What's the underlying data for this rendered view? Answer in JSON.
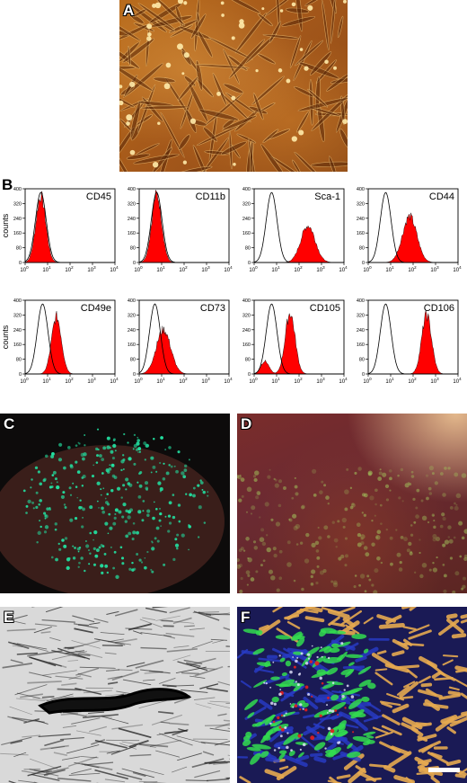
{
  "panels": {
    "a": {
      "letter": "A"
    },
    "b": {
      "letter": "B",
      "ylabel": "counts"
    },
    "c": {
      "letter": "C"
    },
    "d": {
      "letter": "D"
    },
    "e": {
      "letter": "E"
    },
    "f": {
      "letter": "F"
    }
  },
  "colors": {
    "filled_histogram": "#ff0000",
    "control_outline": "#000000",
    "culture_background": "#a3571a",
    "gfp_green": "#22e0a0"
  },
  "chart_data": [
    {
      "type": "area",
      "title": "CD45",
      "xlabel": "",
      "ylabel": "counts",
      "xscale": "log",
      "xlim": [
        1,
        10000
      ],
      "ylim": [
        0,
        400
      ],
      "y_ticks": [
        0,
        80,
        160,
        240,
        320,
        400
      ],
      "x_ticks": [
        "10^0",
        "10^1",
        "10^2",
        "10^3",
        "10^4"
      ],
      "series": [
        {
          "fill": "red",
          "peak_x": 5,
          "peak_y": 360
        },
        {
          "outline": "black",
          "peak_x": 5,
          "peak_y": 380
        }
      ]
    },
    {
      "type": "area",
      "title": "CD11b",
      "xlabel": "",
      "ylabel": "",
      "xscale": "log",
      "xlim": [
        1,
        10000
      ],
      "ylim": [
        0,
        400
      ],
      "y_ticks": [
        0,
        80,
        160,
        240,
        320,
        400
      ],
      "x_ticks": [
        "10^0",
        "10^1",
        "10^2",
        "10^3",
        "10^4"
      ],
      "series": [
        {
          "fill": "red",
          "peak_x": 6,
          "peak_y": 370
        },
        {
          "outline": "black",
          "peak_x": 6,
          "peak_y": 380
        }
      ]
    },
    {
      "type": "area",
      "title": "Sca-1",
      "xlabel": "",
      "ylabel": "",
      "xscale": "log",
      "xlim": [
        1,
        10000
      ],
      "ylim": [
        0,
        400
      ],
      "y_ticks": [
        0,
        80,
        160,
        240,
        320,
        400
      ],
      "x_ticks": [
        "10^0",
        "10^1",
        "10^2",
        "10^3",
        "10^4"
      ],
      "series": [
        {
          "fill": "red",
          "peak_x": 250,
          "peak_y": 200
        },
        {
          "outline": "black",
          "peak_x": 6,
          "peak_y": 380
        }
      ]
    },
    {
      "type": "area",
      "title": "CD44",
      "xlabel": "",
      "ylabel": "",
      "xscale": "log",
      "xlim": [
        1,
        10000
      ],
      "ylim": [
        0,
        400
      ],
      "y_ticks": [
        0,
        80,
        160,
        240,
        320,
        400
      ],
      "x_ticks": [
        "10^0",
        "10^1",
        "10^2",
        "10^3",
        "10^4"
      ],
      "series": [
        {
          "fill": "red",
          "peak_x": 70,
          "peak_y": 250
        },
        {
          "outline": "black",
          "peak_x": 6,
          "peak_y": 380
        }
      ]
    },
    {
      "type": "area",
      "title": "CD49e",
      "xlabel": "",
      "ylabel": "counts",
      "xscale": "log",
      "xlim": [
        1,
        10000
      ],
      "ylim": [
        0,
        400
      ],
      "y_ticks": [
        0,
        80,
        160,
        240,
        320,
        400
      ],
      "x_ticks": [
        "10^0",
        "10^1",
        "10^2",
        "10^3",
        "10^4"
      ],
      "series": [
        {
          "fill": "red",
          "peak_x": 25,
          "peak_y": 310
        },
        {
          "outline": "black",
          "peak_x": 6,
          "peak_y": 380
        }
      ]
    },
    {
      "type": "area",
      "title": "CD73",
      "xlabel": "",
      "ylabel": "",
      "xscale": "log",
      "xlim": [
        1,
        10000
      ],
      "ylim": [
        0,
        400
      ],
      "y_ticks": [
        0,
        80,
        160,
        240,
        320,
        400
      ],
      "x_ticks": [
        "10^0",
        "10^1",
        "10^2",
        "10^3",
        "10^4"
      ],
      "series": [
        {
          "fill": "red",
          "peak_x": 12,
          "peak_y": 240
        },
        {
          "outline": "black",
          "peak_x": 5,
          "peak_y": 380
        }
      ]
    },
    {
      "type": "area",
      "title": "CD105",
      "xlabel": "",
      "ylabel": "",
      "xscale": "log",
      "xlim": [
        1,
        10000
      ],
      "ylim": [
        0,
        400
      ],
      "y_ticks": [
        0,
        80,
        160,
        240,
        320,
        400
      ],
      "x_ticks": [
        "10^0",
        "10^1",
        "10^2",
        "10^3",
        "10^4"
      ],
      "series": [
        {
          "fill": "red",
          "peak_x": 40,
          "peak_y": 330,
          "shoulder_x": 3,
          "shoulder_y": 70
        },
        {
          "outline": "black",
          "peak_x": 6,
          "peak_y": 380
        }
      ]
    },
    {
      "type": "area",
      "title": "CD106",
      "xlabel": "",
      "ylabel": "",
      "xscale": "log",
      "xlim": [
        1,
        10000
      ],
      "ylim": [
        0,
        400
      ],
      "y_ticks": [
        0,
        80,
        160,
        240,
        320,
        400
      ],
      "x_ticks": [
        "10^0",
        "10^1",
        "10^2",
        "10^3",
        "10^4"
      ],
      "series": [
        {
          "fill": "red",
          "peak_x": 400,
          "peak_y": 320
        },
        {
          "outline": "black",
          "peak_x": 6,
          "peak_y": 380
        }
      ]
    }
  ]
}
